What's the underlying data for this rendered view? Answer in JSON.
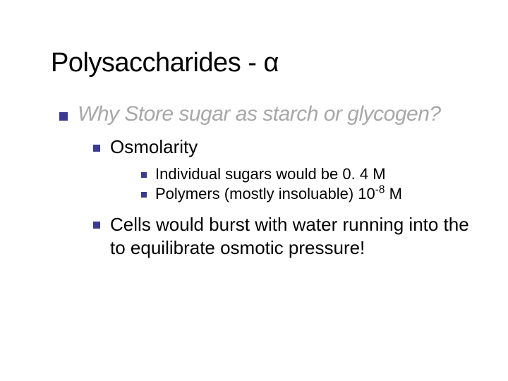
{
  "colors": {
    "background": "#ffffff",
    "title_color": "#000000",
    "bullet_color": "#3b3b8f",
    "lvl1_text_color": "#a8a8a8",
    "body_text_color": "#000000"
  },
  "typography": {
    "title_fontsize": 38,
    "lvl1_fontsize": 30,
    "lvl2_fontsize": 26,
    "lvl3_fontsize": 22,
    "font_family": "Verdana"
  },
  "title": "Polysaccharides - α",
  "lvl1": {
    "text": "Why Store sugar as starch or glycogen?"
  },
  "lvl2a": {
    "text": "Osmolarity"
  },
  "lvl3a": {
    "text": "Individual sugars would be 0. 4 M"
  },
  "lvl3b": {
    "prefix": "Polymers (mostly insoluable) 10",
    "sup": "-8",
    "suffix": " M"
  },
  "lvl2b": {
    "text": "Cells would burst with water running into the to equilibrate osmotic pressure!"
  }
}
